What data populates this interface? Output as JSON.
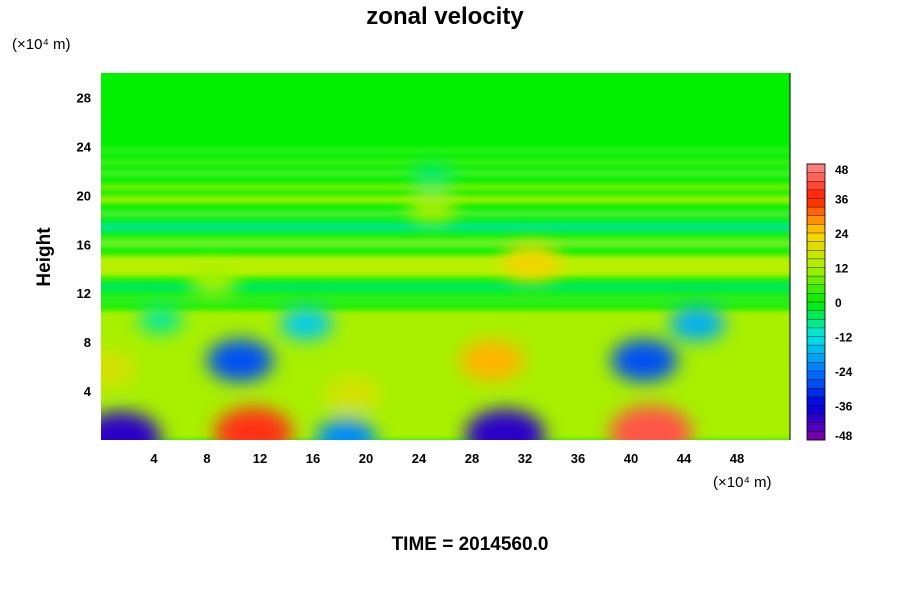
{
  "chart_data": {
    "type": "heatmap",
    "title": "zonal velocity",
    "ylabel": "Height",
    "xunit": "(×10⁴ m)",
    "yunit": "(×10⁴ m)",
    "footer": "TIME = 2014560.0",
    "xlim": [
      0,
      52
    ],
    "ylim": [
      0,
      30
    ],
    "xticks": [
      4,
      8,
      12,
      16,
      20,
      24,
      28,
      32,
      36,
      40,
      44,
      48
    ],
    "yticks": [
      4,
      8,
      12,
      16,
      20,
      24,
      28
    ],
    "colorbar": {
      "min": -48,
      "max": 48,
      "ticks": [
        48,
        36,
        24,
        12,
        0,
        -12,
        -24,
        -36,
        -48
      ]
    },
    "features": [
      {
        "x": 1.5,
        "y": 0.2,
        "value": -40
      },
      {
        "x": 11.5,
        "y": 0.6,
        "value": 38
      },
      {
        "x": 18.5,
        "y": 0.2,
        "value": -22
      },
      {
        "x": 30.5,
        "y": 0.4,
        "value": -40
      },
      {
        "x": 41.5,
        "y": 0.6,
        "value": 42
      },
      {
        "x": 0.5,
        "y": 5.8,
        "value": 18
      },
      {
        "x": 4.5,
        "y": 9.8,
        "value": -8
      },
      {
        "x": 10.5,
        "y": 6.5,
        "value": -28
      },
      {
        "x": 15.5,
        "y": 9.5,
        "value": -15
      },
      {
        "x": 19.0,
        "y": 3.8,
        "value": 18
      },
      {
        "x": 29.5,
        "y": 6.5,
        "value": 26
      },
      {
        "x": 41.0,
        "y": 6.5,
        "value": -28
      },
      {
        "x": 45.0,
        "y": 9.5,
        "value": -18
      },
      {
        "x": 51.5,
        "y": 7.0,
        "value": 12
      },
      {
        "x": 32.5,
        "y": 14.5,
        "value": 22
      },
      {
        "x": 8.5,
        "y": 13.0,
        "value": 12
      },
      {
        "x": 25.0,
        "y": 19.0,
        "value": 12
      },
      {
        "x": 25.0,
        "y": 21.5,
        "value": -6
      }
    ]
  }
}
